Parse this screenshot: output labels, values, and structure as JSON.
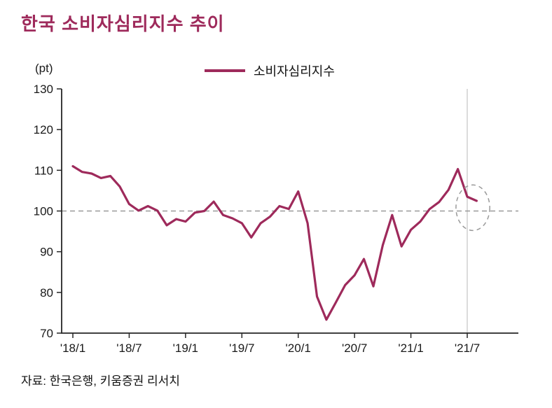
{
  "page": {
    "title": "한국 소비자심리지수 추이",
    "source": "자료: 한국은행, 키움증권 리서치"
  },
  "colors": {
    "accent": "#9E2A5B",
    "reference_line": "#999999",
    "axis": "#262626",
    "vertical_line": "#c4c4c4",
    "annotation": "#9a9a9a"
  },
  "chart_data": {
    "type": "line",
    "title": "한국 소비자심리지수 추이",
    "y_unit_label": "(pt)",
    "ylim": [
      70,
      130
    ],
    "y_ticks": [
      130,
      120,
      110,
      100,
      90,
      80,
      70
    ],
    "x_tick_labels": [
      "'18/1",
      "'18/7",
      "'19/1",
      "'19/7",
      "'20/1",
      "'20/7",
      "'21/1",
      "'21/7"
    ],
    "x_tick_month_indices": [
      0,
      6,
      12,
      18,
      24,
      30,
      36,
      42
    ],
    "reference_line_value": 100,
    "vertical_line_month_index": 42,
    "grid": false,
    "legend_position": "top",
    "series": [
      {
        "name": "소비자심리지수",
        "x": [
          "'18/1",
          "'18/2",
          "'18/3",
          "'18/4",
          "'18/5",
          "'18/6",
          "'18/7",
          "'18/8",
          "'18/9",
          "'18/10",
          "'18/11",
          "'18/12",
          "'19/1",
          "'19/2",
          "'19/3",
          "'19/4",
          "'19/5",
          "'19/6",
          "'19/7",
          "'19/8",
          "'19/9",
          "'19/10",
          "'19/11",
          "'19/12",
          "'20/1",
          "'20/2",
          "'20/3",
          "'20/4",
          "'20/5",
          "'20/6",
          "'20/7",
          "'20/8",
          "'20/9",
          "'20/10",
          "'20/11",
          "'20/12",
          "'21/1",
          "'21/2",
          "'21/3",
          "'21/4",
          "'21/5",
          "'21/6",
          "'21/7",
          "'21/8"
        ],
        "values": [
          111.0,
          109.6,
          109.2,
          108.1,
          108.6,
          106.0,
          101.7,
          100.1,
          101.2,
          100.1,
          96.5,
          98.0,
          97.4,
          99.6,
          100.0,
          102.3,
          99.0,
          98.2,
          97.0,
          93.5,
          97.0,
          98.6,
          101.2,
          100.5,
          104.8,
          97.0,
          79.0,
          73.3,
          77.5,
          81.8,
          84.2,
          88.2,
          81.5,
          91.6,
          99.0,
          91.3,
          95.4,
          97.4,
          100.5,
          102.2,
          105.2,
          110.3,
          103.5,
          102.5
        ]
      }
    ],
    "annotation": {
      "type": "dashed-ellipse",
      "center_month_index": 42.6,
      "center_value": 100.8,
      "rx_months": 1.8,
      "ry_points": 5.6
    }
  }
}
